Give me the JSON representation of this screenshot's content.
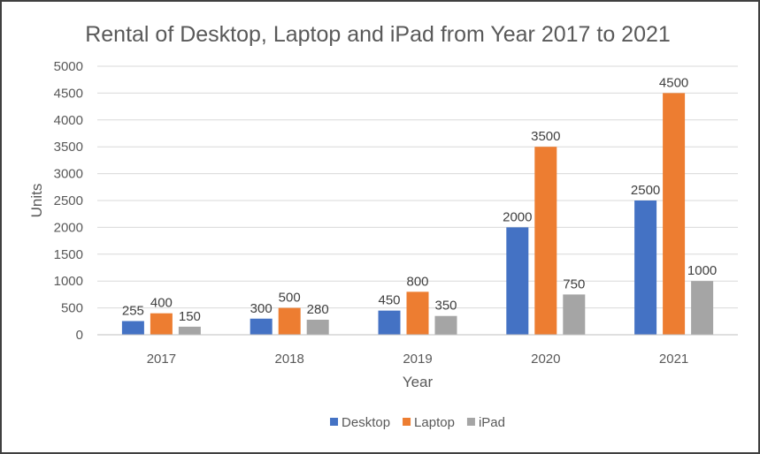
{
  "chart_data": {
    "type": "bar",
    "title": "Rental of Desktop, Laptop and iPad from Year 2017 to 2021",
    "xlabel": "Year",
    "ylabel": "Units",
    "categories": [
      "2017",
      "2018",
      "2019",
      "2020",
      "2021"
    ],
    "series": [
      {
        "name": "Desktop",
        "color": "#4472C4",
        "values": [
          255,
          300,
          450,
          2000,
          2500
        ]
      },
      {
        "name": "Laptop",
        "color": "#ED7D31",
        "values": [
          400,
          500,
          800,
          3500,
          4500
        ]
      },
      {
        "name": "iPad",
        "color": "#A5A5A5",
        "values": [
          150,
          280,
          350,
          750,
          1000
        ]
      }
    ],
    "ylim": [
      0,
      5000
    ],
    "yticks": [
      0,
      500,
      1000,
      1500,
      2000,
      2500,
      3000,
      3500,
      4000,
      4500,
      5000
    ],
    "grid": true,
    "legend": "bottom"
  }
}
